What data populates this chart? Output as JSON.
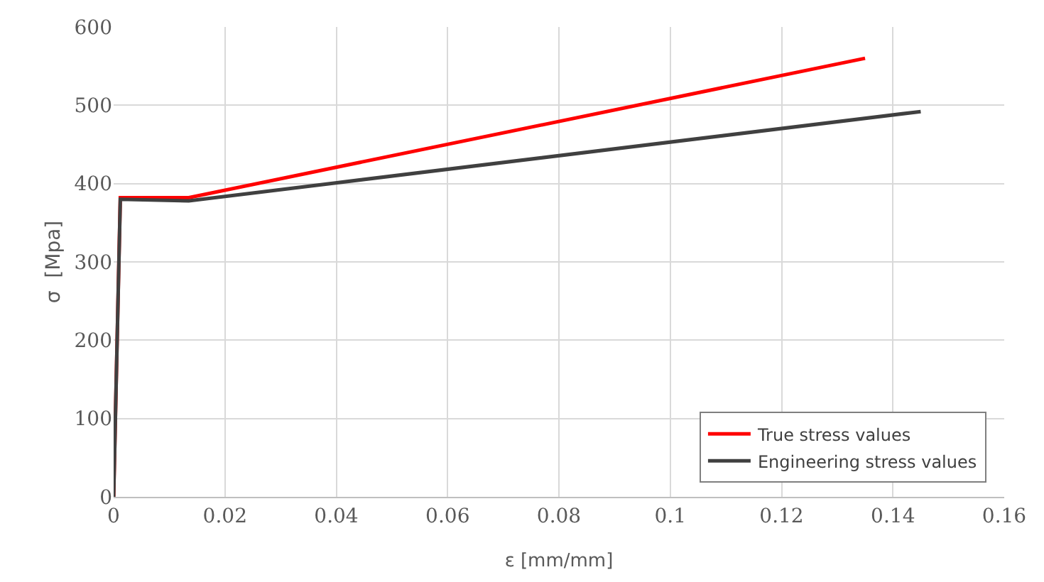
{
  "chart_data": {
    "type": "line",
    "xlabel": "ε [mm/mm]",
    "ylabel": "σ  [Mpa]",
    "series": [
      {
        "name": "True stress values",
        "color": "#ff0000",
        "x": [
          0,
          0.0012,
          0.0135,
          0.135
        ],
        "values": [
          0,
          382,
          382,
          560
        ]
      },
      {
        "name": "Engineering stress values",
        "color": "#404040",
        "x": [
          0,
          0.0012,
          0.0135,
          0.145
        ],
        "values": [
          0,
          380,
          378,
          492
        ]
      }
    ],
    "xlim": [
      0,
      0.16
    ],
    "xticks": [
      0,
      0.02,
      0.04,
      0.06,
      0.08,
      0.1,
      0.12,
      0.14,
      0.16
    ],
    "ylim": [
      0,
      600
    ],
    "yticks": [
      0,
      100,
      200,
      300,
      400,
      500,
      600
    ],
    "grid": true,
    "legend": "bottom right",
    "marker": "none",
    "line_style": "solid"
  }
}
